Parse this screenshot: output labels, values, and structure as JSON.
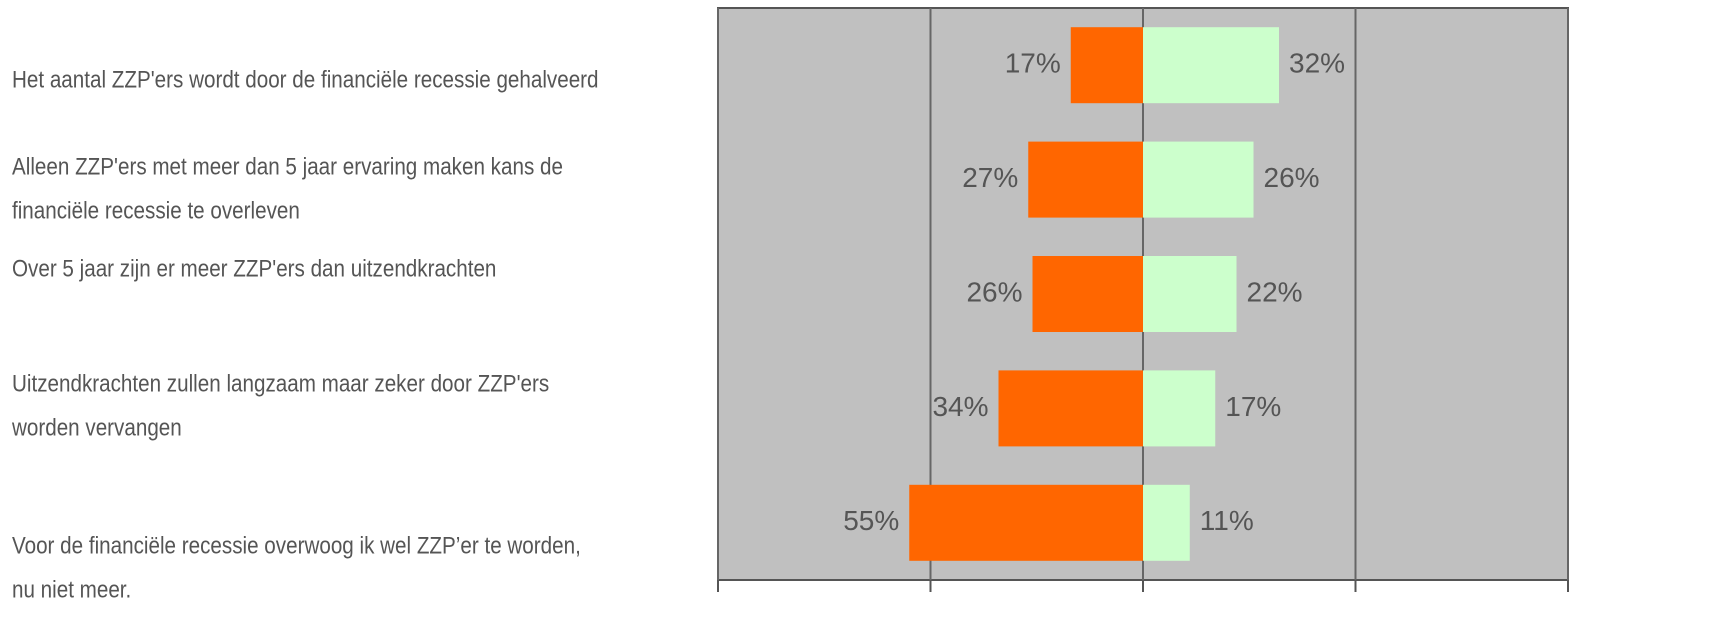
{
  "chart_data": {
    "type": "diverging-bar",
    "categories": [
      [
        "Het aantal ZZP'ers wordt door de financiële recessie gehalveerd"
      ],
      [
        "Alleen ZZP'ers met meer dan 5 jaar ervaring maken kans de",
        "financiële recessie te overleven"
      ],
      [
        "Over 5 jaar zijn er meer ZZP'ers dan uitzendkrachten"
      ],
      [
        "Uitzendkrachten zullen langzaam maar zeker door ZZP'ers",
        "worden vervangen"
      ],
      [
        "Voor de financiële recessie overwoog ik wel ZZP’er te worden,",
        "nu niet meer."
      ]
    ],
    "series": [
      {
        "color": "#ff6600",
        "direction": "left",
        "values": [
          17,
          27,
          26,
          34,
          55
        ],
        "value_labels": [
          "17%",
          "27%",
          "26%",
          "34%",
          "55%"
        ]
      },
      {
        "color": "#ccffcc",
        "direction": "right",
        "values": [
          32,
          26,
          22,
          17,
          11
        ],
        "value_labels": [
          "32%",
          "26%",
          "22%",
          "17%",
          "11%"
        ]
      }
    ],
    "xlim": [
      -100,
      100
    ],
    "xticks": [
      -100,
      -50,
      0,
      50,
      100
    ],
    "grid": true,
    "plot_background": "#c0c0c0"
  }
}
